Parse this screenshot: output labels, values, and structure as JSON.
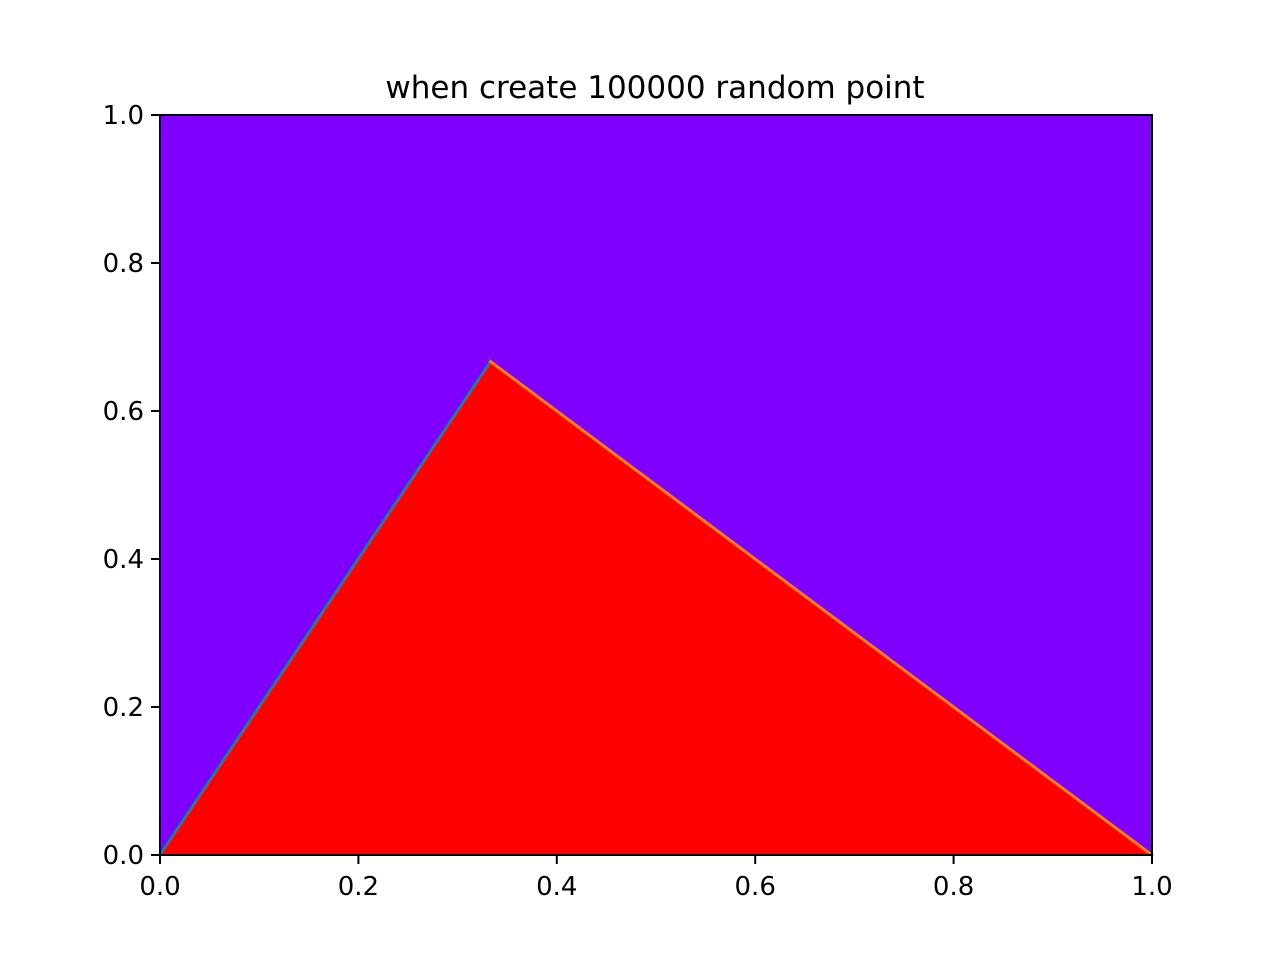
{
  "chart_data": {
    "type": "scatter",
    "title": "when create 100000 random point",
    "xlabel": "",
    "ylabel": "",
    "xlim": [
      0.0,
      1.0
    ],
    "ylim": [
      0.0,
      1.0
    ],
    "x_ticks": [
      "0.0",
      "0.2",
      "0.4",
      "0.6",
      "0.8",
      "1.0"
    ],
    "y_ticks": [
      "0.0",
      "0.2",
      "0.4",
      "0.6",
      "0.8",
      "1.0"
    ],
    "grid": false,
    "legend": "none",
    "colors": {
      "outside_points": "#8000ff",
      "inside_points": "#ff0000",
      "left_edge_line": "#1f77b4",
      "right_edge_line": "#ff7f0e"
    },
    "regions": [
      {
        "name": "outside",
        "color": "#8000ff",
        "fill": "axes-background"
      },
      {
        "name": "inside",
        "color": "#ff0000",
        "vertices": [
          [
            0.0,
            0.0
          ],
          [
            0.3333,
            0.6667
          ],
          [
            1.0,
            0.0
          ]
        ]
      }
    ],
    "series": [
      {
        "type": "line",
        "color": "#1f77b4",
        "x": [
          0.0,
          0.3333
        ],
        "y": [
          0.0,
          0.6667
        ]
      },
      {
        "type": "line",
        "color": "#ff7f0e",
        "x": [
          0.3333,
          1.0
        ],
        "y": [
          0.6667,
          0.0
        ]
      }
    ]
  }
}
